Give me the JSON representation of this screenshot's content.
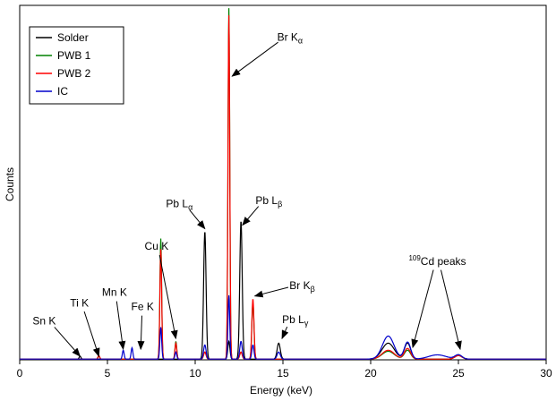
{
  "chart_data": {
    "type": "line",
    "title": "",
    "xlabel": "Energy (keV)",
    "ylabel": "Counts",
    "xlim": [
      0,
      30
    ],
    "ylim": [
      0,
      1
    ],
    "y_tick_labels_shown": false,
    "x_ticks": [
      0,
      5,
      10,
      15,
      20,
      25,
      30
    ],
    "grid": false,
    "legend_placement": "top-left",
    "series": [
      {
        "name": "Solder",
        "color": "#000000",
        "peaks": [
          [
            3.44,
            0.008,
            0.05
          ],
          [
            10.55,
            0.36,
            0.07
          ],
          [
            11.92,
            0.05,
            0.06
          ],
          [
            12.61,
            0.39,
            0.07
          ],
          [
            14.76,
            0.045,
            0.09
          ],
          [
            21.0,
            0.045,
            0.35
          ],
          [
            22.1,
            0.045,
            0.18
          ],
          [
            25.0,
            0.012,
            0.2
          ]
        ]
      },
      {
        "name": "PWB 1",
        "color": "#008000",
        "peaks": [
          [
            4.51,
            0.008,
            0.05
          ],
          [
            8.04,
            0.34,
            0.05
          ],
          [
            8.9,
            0.05,
            0.05
          ],
          [
            10.55,
            0.02,
            0.07
          ],
          [
            11.92,
            0.99,
            0.05
          ],
          [
            12.61,
            0.02,
            0.07
          ],
          [
            13.29,
            0.16,
            0.06
          ],
          [
            21.0,
            0.022,
            0.35
          ],
          [
            22.1,
            0.025,
            0.18
          ],
          [
            25.0,
            0.01,
            0.2
          ]
        ]
      },
      {
        "name": "PWB 2",
        "color": "#ff0000",
        "peaks": [
          [
            4.51,
            0.01,
            0.05
          ],
          [
            8.04,
            0.31,
            0.05
          ],
          [
            8.9,
            0.045,
            0.05
          ],
          [
            10.55,
            0.02,
            0.07
          ],
          [
            11.92,
            0.97,
            0.05
          ],
          [
            12.61,
            0.02,
            0.07
          ],
          [
            13.29,
            0.17,
            0.06
          ],
          [
            21.0,
            0.025,
            0.35
          ],
          [
            22.1,
            0.03,
            0.18
          ],
          [
            25.0,
            0.01,
            0.2
          ]
        ]
      },
      {
        "name": "IC",
        "color": "#0000cc",
        "peaks": [
          [
            5.9,
            0.025,
            0.05
          ],
          [
            6.4,
            0.032,
            0.05
          ],
          [
            8.04,
            0.09,
            0.05
          ],
          [
            8.9,
            0.02,
            0.05
          ],
          [
            10.55,
            0.04,
            0.07
          ],
          [
            11.92,
            0.18,
            0.05
          ],
          [
            12.61,
            0.05,
            0.07
          ],
          [
            13.29,
            0.04,
            0.06
          ],
          [
            14.76,
            0.02,
            0.09
          ],
          [
            21.0,
            0.065,
            0.33
          ],
          [
            22.1,
            0.048,
            0.18
          ],
          [
            23.8,
            0.012,
            0.5
          ],
          [
            25.0,
            0.012,
            0.2
          ]
        ]
      }
    ],
    "annotations": [
      {
        "label": "Sn K",
        "label_pos": [
          1.4,
          0.1
        ],
        "arrow_to": [
          3.44,
          0.01
        ]
      },
      {
        "label": "Ti K",
        "label_pos": [
          3.4,
          0.15
        ],
        "arrow_to": [
          4.51,
          0.01
        ]
      },
      {
        "label": "Mn K",
        "label_pos": [
          5.4,
          0.18
        ],
        "arrow_to": [
          5.9,
          0.03
        ]
      },
      {
        "label": "Fe K",
        "label_pos": [
          7.0,
          0.14
        ],
        "arrow_to": [
          6.9,
          0.03
        ]
      },
      {
        "label": "Cu K",
        "label_pos": [
          7.8,
          0.31
        ],
        "arrow_to": [
          8.9,
          0.06
        ]
      },
      {
        "label": "Pb L",
        "sub": "α",
        "label_pos": [
          9.1,
          0.43
        ],
        "arrow_to": [
          10.55,
          0.37
        ]
      },
      {
        "label": "Br K",
        "sub": "α",
        "label_pos": [
          15.4,
          0.9
        ],
        "arrow_to": [
          12.1,
          0.8
        ]
      },
      {
        "label": "Pb L",
        "sub": "β",
        "label_pos": [
          14.2,
          0.44
        ],
        "arrow_to": [
          12.7,
          0.38
        ]
      },
      {
        "label": "Br K",
        "sub": "β",
        "label_pos": [
          16.1,
          0.2
        ],
        "arrow_to": [
          13.4,
          0.18
        ]
      },
      {
        "label": "Pb L",
        "sub": "γ",
        "label_pos": [
          15.7,
          0.104
        ],
        "arrow_to": [
          14.95,
          0.06
        ]
      },
      {
        "label": "Cd peaks",
        "sup": "109",
        "label_pos": [
          23.8,
          0.268
        ],
        "arrow_to": [
          [
            22.4,
            0.035
          ],
          [
            25.1,
            0.03
          ]
        ]
      }
    ]
  }
}
